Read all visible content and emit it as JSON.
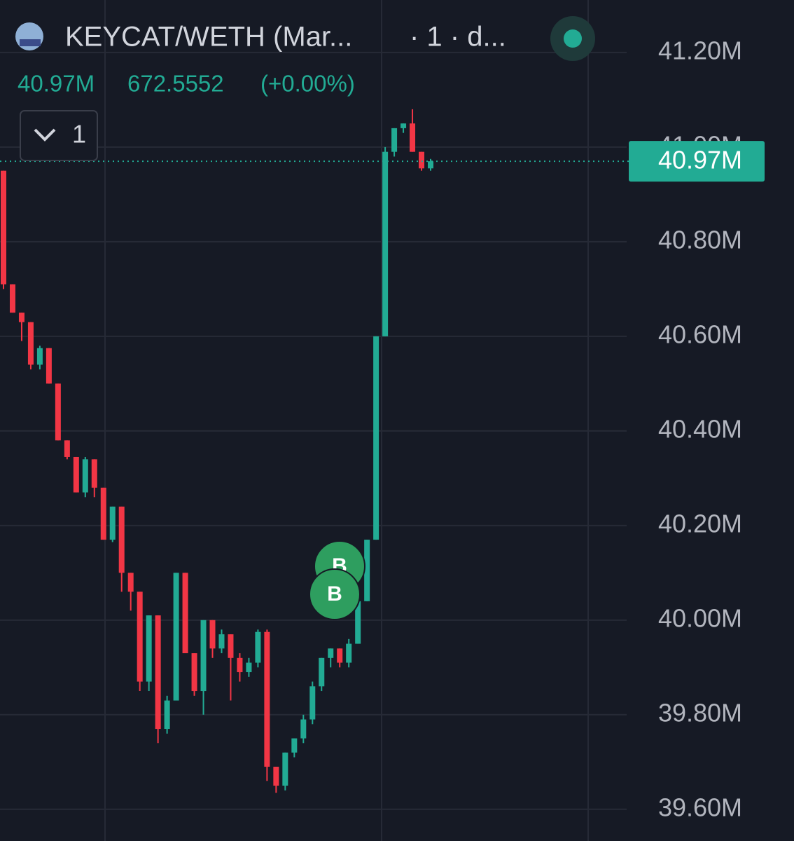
{
  "chart_data": {
    "type": "candlestick",
    "title": "KEYCAT/WETH (Mar...",
    "subtitle": "· 1 · d...",
    "legend_values": [
      "40.97M",
      "672.5552",
      "(+0.00%)"
    ],
    "interval_button": "1",
    "annotations": [
      "B",
      "B"
    ],
    "up_color": "#22ab94",
    "down_color": "#f23645",
    "last_price": {
      "value": 40.97,
      "label": "40.97M"
    },
    "ylim": [
      39.533,
      41.311
    ],
    "yticks": [
      {
        "value": 39.6,
        "label": "39.60M"
      },
      {
        "value": 39.8,
        "label": "39.80M"
      },
      {
        "value": 40.0,
        "label": "40.00M"
      },
      {
        "value": 40.2,
        "label": "40.20M"
      },
      {
        "value": 40.4,
        "label": "40.40M"
      },
      {
        "value": 40.6,
        "label": "40.60M"
      },
      {
        "value": 40.8,
        "label": "40.80M"
      },
      {
        "value": 41.0,
        "label": "41.00M"
      },
      {
        "value": 41.2,
        "label": "41.20M"
      }
    ],
    "grid": true,
    "open": [
      40.95,
      40.71,
      40.65,
      40.63,
      40.54,
      40.575,
      40.5,
      40.38,
      40.345,
      40.27,
      40.34,
      40.28,
      40.17,
      40.24,
      40.1,
      40.06,
      39.87,
      40.01,
      39.77,
      39.83,
      40.1,
      39.93,
      39.85,
      40.0,
      39.94,
      39.97,
      39.92,
      39.89,
      39.91,
      39.975,
      39.69,
      39.65,
      39.72,
      39.75,
      39.79,
      39.86,
      39.92,
      39.94,
      39.91,
      39.95,
      40.04,
      40.17,
      40.6,
      40.99,
      41.04,
      41.05,
      40.99,
      40.955
    ],
    "high": [
      40.95,
      40.71,
      40.65,
      40.63,
      40.58,
      40.575,
      40.5,
      40.38,
      40.345,
      40.345,
      40.34,
      40.28,
      40.24,
      40.24,
      40.1,
      40.06,
      40.01,
      40.01,
      39.84,
      40.1,
      40.1,
      39.93,
      40.0,
      40.0,
      39.98,
      39.97,
      39.93,
      39.92,
      39.98,
      39.98,
      39.69,
      39.72,
      39.75,
      39.8,
      39.87,
      39.92,
      39.94,
      39.94,
      39.96,
      40.04,
      40.17,
      40.6,
      41.0,
      41.04,
      41.05,
      41.08,
      40.99,
      40.975
    ],
    "low": [
      40.7,
      40.65,
      40.59,
      40.53,
      40.53,
      40.5,
      40.38,
      40.34,
      40.27,
      40.26,
      40.26,
      40.17,
      40.165,
      40.06,
      40.02,
      39.85,
      39.85,
      39.74,
      39.76,
      39.83,
      39.93,
      39.84,
      39.8,
      39.92,
      39.93,
      39.83,
      39.87,
      39.88,
      39.9,
      39.66,
      39.635,
      39.64,
      39.71,
      39.74,
      39.78,
      39.85,
      39.9,
      39.9,
      39.9,
      39.95,
      40.04,
      40.17,
      40.6,
      40.98,
      41.03,
      40.99,
      40.95,
      40.95
    ],
    "close": [
      40.71,
      40.65,
      40.63,
      40.54,
      40.575,
      40.5,
      40.38,
      40.345,
      40.27,
      40.34,
      40.28,
      40.17,
      40.24,
      40.1,
      40.06,
      39.87,
      40.01,
      39.77,
      39.83,
      40.1,
      39.93,
      39.85,
      40.0,
      39.94,
      39.97,
      39.92,
      39.89,
      39.91,
      39.975,
      39.69,
      39.65,
      39.72,
      39.75,
      39.79,
      39.86,
      39.92,
      39.94,
      39.91,
      39.95,
      40.04,
      40.17,
      40.6,
      40.99,
      41.04,
      41.05,
      40.99,
      40.955,
      40.97
    ]
  }
}
